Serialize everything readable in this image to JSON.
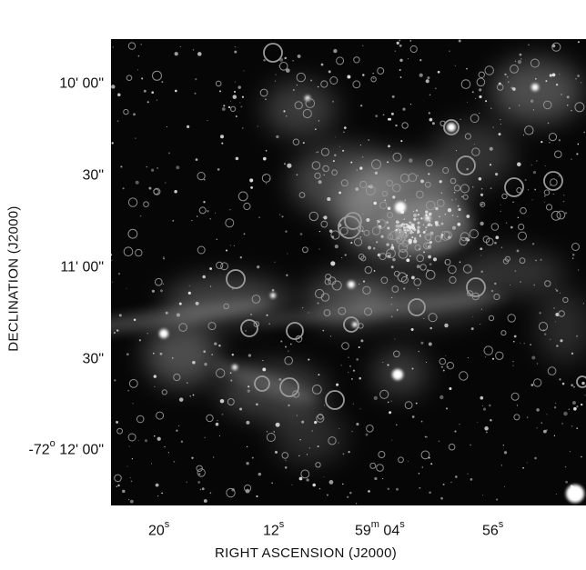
{
  "figure": {
    "y_axis": {
      "label": "DECLINATION  (J2000)",
      "ticks": [
        {
          "pre": "",
          "deg": "",
          "min": "10' 00\""
        },
        {
          "pre": "",
          "deg": "",
          "min": "30\""
        },
        {
          "pre": "",
          "deg": "",
          "min": "11' 00\""
        },
        {
          "pre": "",
          "deg": "",
          "min": "30\""
        },
        {
          "pre": "-72",
          "deg": "o",
          "min": " 12' 00\""
        }
      ]
    },
    "x_axis": {
      "label": "RIGHT ASCENSION  (J2000)",
      "ticks": [
        {
          "main": "20",
          "sup": "s",
          "mid": "",
          "sup2": ""
        },
        {
          "main": "12",
          "sup": "s",
          "mid": "",
          "sup2": ""
        },
        {
          "main": "59",
          "sup": "m",
          "mid": " 04",
          "sup2": "s"
        },
        {
          "main": "56",
          "sup": "s",
          "mid": "",
          "sup2": ""
        }
      ]
    },
    "image_colors": {
      "background": "#060606",
      "nebula": "#b8b8b8",
      "stars": "#e8e8e8",
      "circles": "#9a9a9a"
    }
  }
}
